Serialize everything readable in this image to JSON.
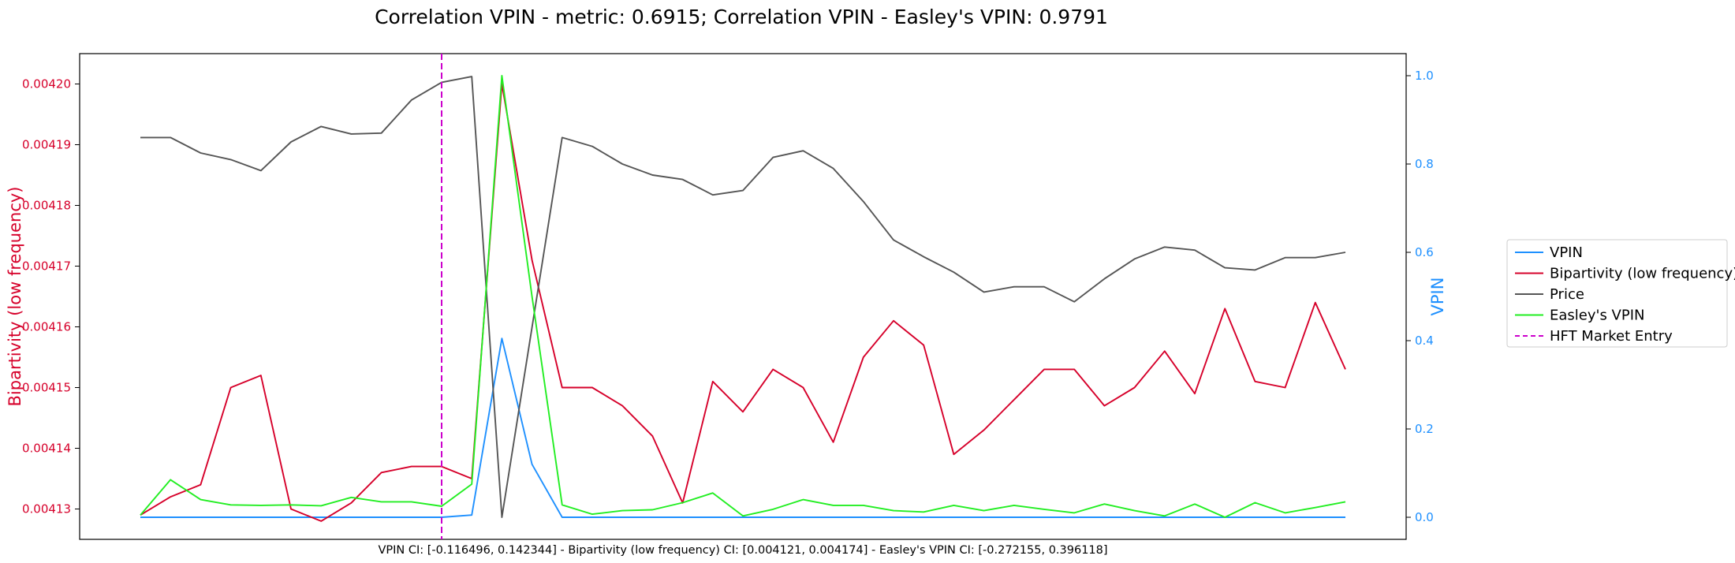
{
  "chart_data": {
    "type": "line",
    "title": "Correlation VPIN - metric: 0.6915; Correlation VPIN - Easley's VPIN: 0.9791",
    "footnote": "VPIN CI: [-0.116496, 0.142344] - Bipartivity (low frequency) CI: [0.004121, 0.004174] - Easley's VPIN CI: [-0.272155, 0.396118]",
    "ylabel_left": "Bipartivity (low frequency)",
    "ylabel_right": "VPIN",
    "ylim_left": [
      0.004125,
      0.004205
    ],
    "ylim_right": [
      -0.05,
      1.05
    ],
    "yticks_left": [
      "0.00413",
      "0.00414",
      "0.00415",
      "0.00416",
      "0.00417",
      "0.00418",
      "0.00419",
      "0.00420"
    ],
    "yticks_right": [
      "0.0",
      "0.2",
      "0.4",
      "0.6",
      "0.8",
      "1.0"
    ],
    "x": [
      0,
      1,
      2,
      3,
      4,
      5,
      6,
      7,
      8,
      9,
      10,
      11,
      12,
      13,
      14,
      15,
      16,
      17,
      18,
      19,
      20,
      21,
      22,
      23,
      24,
      25,
      26,
      27,
      28,
      29,
      30,
      31,
      32,
      33,
      34,
      35,
      36,
      37,
      38,
      39,
      40
    ],
    "hft_market_entry_x": 10,
    "grid": false,
    "legend_position": "right",
    "series": [
      {
        "name": "VPIN",
        "axis": "right",
        "color": "#1e90ff",
        "values": [
          0.0,
          0.0,
          0.0,
          0.0,
          0.0,
          0.0,
          0.0,
          0.0,
          0.0,
          0.0,
          0.0,
          0.005,
          0.405,
          0.12,
          0.0,
          0.0,
          0.0,
          0.0,
          0.0,
          0.0,
          0.0,
          0.0,
          0.0,
          0.0,
          0.0,
          0.0,
          0.0,
          0.0,
          0.0,
          0.0,
          0.0,
          0.0,
          0.0,
          0.0,
          0.0,
          0.0,
          0.0,
          0.0,
          0.0,
          0.0,
          0.0
        ]
      },
      {
        "name": "Bipartivity (low frequency)",
        "axis": "left",
        "color": "#d6002a",
        "values": [
          0.004129,
          0.004132,
          0.004134,
          0.00415,
          0.004152,
          0.00413,
          0.004128,
          0.004131,
          0.004136,
          0.004137,
          0.004137,
          0.004135,
          0.0042,
          0.004171,
          0.00415,
          0.00415,
          0.004147,
          0.004142,
          0.004131,
          0.004151,
          0.004146,
          0.004153,
          0.00415,
          0.004141,
          0.004155,
          0.004161,
          0.004157,
          0.004139,
          0.004143,
          0.004148,
          0.004153,
          0.004153,
          0.004147,
          0.00415,
          0.004156,
          0.004149,
          0.004163,
          0.004151,
          0.00415,
          0.004164,
          0.004153
        ]
      },
      {
        "name": "Price",
        "axis": "right",
        "color": "#555555",
        "values": [
          0.86,
          0.86,
          0.825,
          0.81,
          0.785,
          0.85,
          0.885,
          0.868,
          0.87,
          0.945,
          0.985,
          0.998,
          0.0,
          0.43,
          0.86,
          0.84,
          0.8,
          0.775,
          0.765,
          0.73,
          0.74,
          0.815,
          0.83,
          0.79,
          0.715,
          0.628,
          0.59,
          0.555,
          0.51,
          0.522,
          0.522,
          0.488,
          0.54,
          0.585,
          0.612,
          0.605,
          0.565,
          0.56,
          0.588,
          0.588,
          0.6
        ]
      },
      {
        "name": "Easley's VPIN",
        "axis": "right",
        "color": "#22ee22",
        "values": [
          0.005,
          0.085,
          0.04,
          0.028,
          0.027,
          0.028,
          0.026,
          0.045,
          0.035,
          0.035,
          0.025,
          0.075,
          1.0,
          0.5,
          0.028,
          0.007,
          0.015,
          0.017,
          0.033,
          0.055,
          0.003,
          0.018,
          0.04,
          0.027,
          0.027,
          0.015,
          0.012,
          0.027,
          0.015,
          0.027,
          0.018,
          0.01,
          0.03,
          0.015,
          0.003,
          0.03,
          0.0,
          0.033,
          0.01,
          0.022,
          0.035
        ]
      }
    ],
    "vline": {
      "name": "HFT Market Entry",
      "color": "#cc00cc"
    }
  }
}
